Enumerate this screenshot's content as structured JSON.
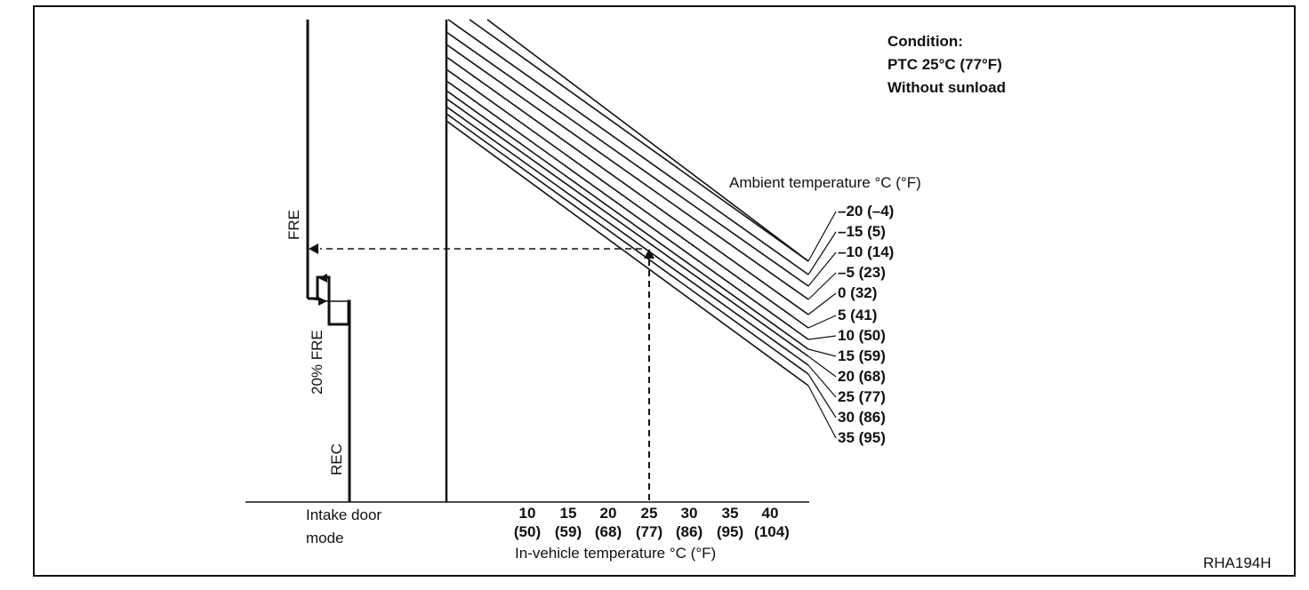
{
  "condition": {
    "heading": "Condition:",
    "line1": "PTC 25°C (77°F)",
    "line2": "Without sunload"
  },
  "intake_modes": {
    "fre": "FRE",
    "fre20": "20% FRE",
    "rec": "REC"
  },
  "intake_axis_label": {
    "line1": "Intake door",
    "line2": "mode"
  },
  "ambient_header": "Ambient temperature °C (°F)",
  "ambient_labels": [
    "–20 (–4)",
    "–15 (5)",
    "–10 (14)",
    "–5 (23)",
    "0 (32)",
    "5 (41)",
    "10 (50)",
    "15 (59)",
    "20 (68)",
    "25 (77)",
    "30 (86)",
    "35 (95)"
  ],
  "x_ticks": {
    "celsius": [
      "10",
      "15",
      "20",
      "25",
      "30",
      "35",
      "40"
    ],
    "fahrenheit": [
      "(50)",
      "(59)",
      "(68)",
      "(77)",
      "(86)",
      "(95)",
      "(104)"
    ]
  },
  "x_axis_label": "In-vehicle temperature °C (°F)",
  "figure_code": "RHA194H",
  "chart_data": {
    "type": "line",
    "xlabel": "In-vehicle temperature °C (°F)",
    "series_labels": [
      "–20 (–4)",
      "–15 (5)",
      "–10 (14)",
      "–5 (23)",
      "0 (32)",
      "5 (41)",
      "10 (50)",
      "15 (59)",
      "20 (68)",
      "25 (77)",
      "30 (86)",
      "35 (95)"
    ],
    "example_reading": {
      "in_vehicle_temp_c": 25,
      "result_mode": "FRE"
    },
    "x_ticks_c": [
      10,
      15,
      20,
      25,
      30,
      35,
      40
    ]
  }
}
